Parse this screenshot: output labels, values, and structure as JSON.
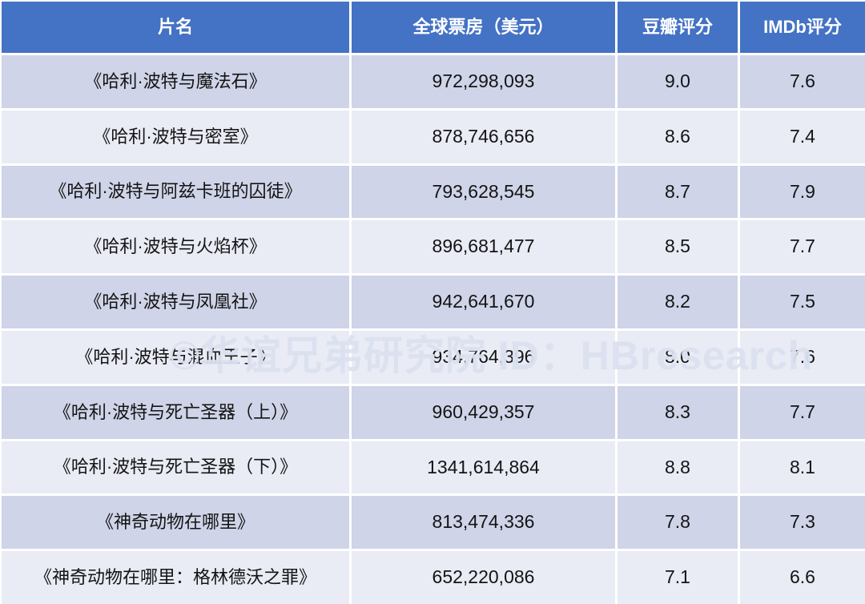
{
  "colors": {
    "header_bg": "#4472C4",
    "row_dark": "#CFD4E8",
    "row_light": "#E9EBF5",
    "header_text": "#FFFFFF",
    "cell_text": "#141414",
    "watermark_text": "#DCE1F0"
  },
  "watermark": {
    "text": "©华谊兄弟研究院 ID：HBresearch"
  },
  "table": {
    "headers": [
      {
        "label": "片名"
      },
      {
        "label": "全球票房（美元）"
      },
      {
        "label": "豆瓣评分"
      },
      {
        "label": "IMDb评分"
      }
    ],
    "rows": [
      {
        "title": "《哈利·波特与魔法石》",
        "box_office": "972,298,093",
        "douban": "9.0",
        "imdb": "7.6"
      },
      {
        "title": "《哈利·波特与密室》",
        "box_office": "878,746,656",
        "douban": "8.6",
        "imdb": "7.4"
      },
      {
        "title": "《哈利·波特与阿兹卡班的囚徒》",
        "box_office": "793,628,545",
        "douban": "8.7",
        "imdb": "7.9"
      },
      {
        "title": "《哈利·波特与火焰杯》",
        "box_office": "896,681,477",
        "douban": "8.5",
        "imdb": "7.7"
      },
      {
        "title": "《哈利·波特与凤凰社》",
        "box_office": "942,641,670",
        "douban": "8.2",
        "imdb": "7.5"
      },
      {
        "title": "《哈利·波特与混血王子》",
        "box_office": "934,764,396",
        "douban": "8.0",
        "imdb": "7.6"
      },
      {
        "title": "《哈利·波特与死亡圣器（上）》",
        "box_office": "960,429,357",
        "douban": "8.3",
        "imdb": "7.7"
      },
      {
        "title": "《哈利·波特与死亡圣器（下）》",
        "box_office": "1341,614,864",
        "douban": "8.8",
        "imdb": "8.1"
      },
      {
        "title": "《神奇动物在哪里》",
        "box_office": "813,474,336",
        "douban": "7.8",
        "imdb": "7.3"
      },
      {
        "title": "《神奇动物在哪里：格林德沃之罪》",
        "box_office": "652,220,086",
        "douban": "7.1",
        "imdb": "6.6"
      }
    ]
  }
}
